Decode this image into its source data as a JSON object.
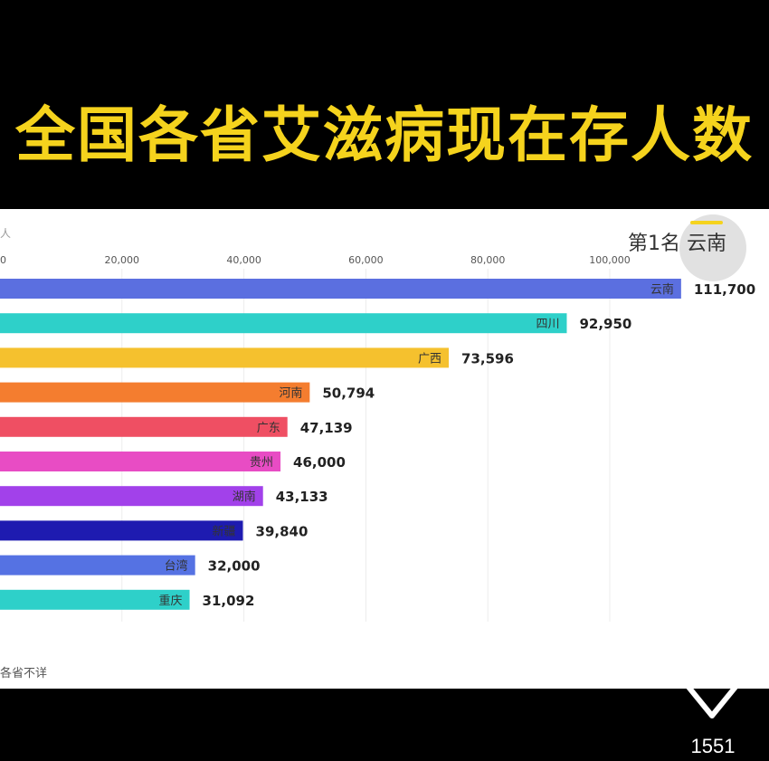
{
  "header": {
    "title": "全国各省艾滋病现在存人数"
  },
  "chart_panel": {
    "unit_label": "人",
    "rank_label": "第1名",
    "rank_name": "云南",
    "footnote": "各省不详"
  },
  "chart_data": {
    "type": "bar",
    "orientation": "horizontal",
    "title": "全国各省艾滋病现在存人数",
    "categories": [
      "云南",
      "四川",
      "广西",
      "河南",
      "广东",
      "贵州",
      "湖南",
      "新疆",
      "台湾",
      "重庆"
    ],
    "values": [
      111700,
      92950,
      73596,
      50794,
      47139,
      46000,
      43133,
      39840,
      32000,
      31092
    ],
    "value_labels": [
      "111,700",
      "92,950",
      "73,596",
      "50,794",
      "47,139",
      "46,000",
      "43,133",
      "39,840",
      "32,000",
      "31,092"
    ],
    "colors": [
      "#5b6fe0",
      "#2ed0c9",
      "#f5c12e",
      "#f47d2f",
      "#ef4f63",
      "#e84cc4",
      "#a241ea",
      "#1e1bb0",
      "#5572e3",
      "#2ed0c9"
    ],
    "xticks": [
      "0",
      "20,000",
      "40,000",
      "60,000",
      "80,000",
      "100,000"
    ],
    "xtick_values": [
      0,
      20000,
      40000,
      60000,
      80000,
      100000
    ],
    "grid": true
  },
  "social": {
    "icon": "heart-outline-icon",
    "like_count": "1551"
  }
}
